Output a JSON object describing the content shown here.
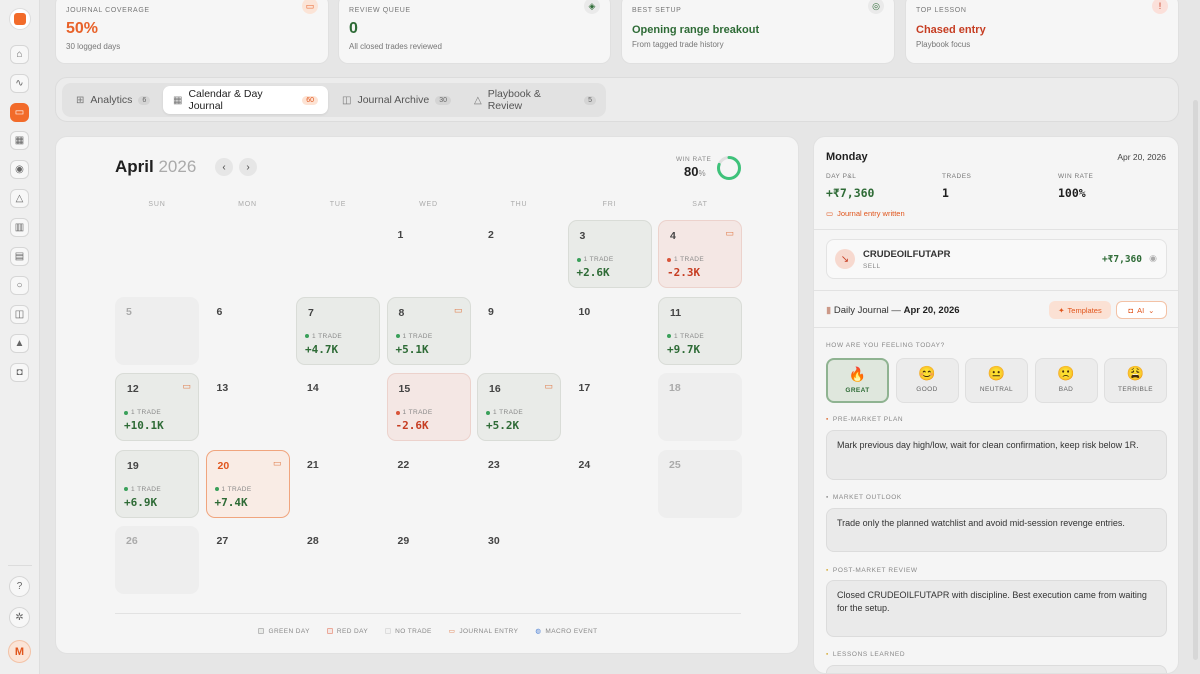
{
  "stats": [
    {
      "label": "JOURNAL COVERAGE",
      "value": "50%",
      "sub": "30 logged days",
      "color": "#e8622a",
      "icon": "book-icon"
    },
    {
      "label": "REVIEW QUEUE",
      "value": "0",
      "sub": "All closed trades reviewed",
      "color": "#2e6b36",
      "icon": "shield-check-icon"
    },
    {
      "label": "BEST SETUP",
      "value": "Opening range breakout",
      "sub": "From tagged trade history",
      "color": "#2e6b36",
      "icon": "target-icon"
    },
    {
      "label": "TOP LESSON",
      "value": "Chased entry",
      "sub": "Playbook focus",
      "color": "#c63d22",
      "icon": "alert-icon"
    }
  ],
  "tabs": [
    {
      "label": "Analytics",
      "count": "6"
    },
    {
      "label": "Calendar & Day Journal",
      "count": "60"
    },
    {
      "label": "Journal Archive",
      "count": "30"
    },
    {
      "label": "Playbook & Review",
      "count": "5"
    }
  ],
  "calendar": {
    "month": "April",
    "year": "2026",
    "win_rate_label": "WIN RATE",
    "win_rate": "80",
    "win_rate_unit": "%",
    "win_rate_fraction": 0.8,
    "weekdays": [
      "SUN",
      "MON",
      "TUE",
      "WED",
      "THU",
      "FRI",
      "SAT"
    ],
    "days": [
      {
        "d": "1",
        "type": "none"
      },
      {
        "d": "2",
        "type": "none"
      },
      {
        "d": "3",
        "type": "green",
        "trades": "1 TRADE",
        "pnl": "+2.6K"
      },
      {
        "d": "4",
        "type": "red",
        "trades": "1 TRADE",
        "pnl": "-2.3K",
        "journal": true
      },
      {
        "d": "5",
        "type": "grey"
      },
      {
        "d": "6",
        "type": "none"
      },
      {
        "d": "7",
        "type": "green",
        "trades": "1 TRADE",
        "pnl": "+4.7K"
      },
      {
        "d": "8",
        "type": "green",
        "trades": "1 TRADE",
        "pnl": "+5.1K",
        "journal": true
      },
      {
        "d": "9",
        "type": "none"
      },
      {
        "d": "10",
        "type": "none"
      },
      {
        "d": "11",
        "type": "green",
        "trades": "1 TRADE",
        "pnl": "+9.7K"
      },
      {
        "d": "12",
        "type": "green",
        "trades": "1 TRADE",
        "pnl": "+10.1K",
        "journal": true
      },
      {
        "d": "13",
        "type": "none"
      },
      {
        "d": "14",
        "type": "none"
      },
      {
        "d": "15",
        "type": "red",
        "trades": "1 TRADE",
        "pnl": "-2.6K"
      },
      {
        "d": "16",
        "type": "green",
        "trades": "1 TRADE",
        "pnl": "+5.2K",
        "journal": true
      },
      {
        "d": "17",
        "type": "none"
      },
      {
        "d": "18",
        "type": "grey"
      },
      {
        "d": "19",
        "type": "green",
        "trades": "1 TRADE",
        "pnl": "+6.9K"
      },
      {
        "d": "20",
        "type": "sel",
        "trades": "1 TRADE",
        "pnl": "+7.4K",
        "journal": true
      },
      {
        "d": "21",
        "type": "none"
      },
      {
        "d": "22",
        "type": "none"
      },
      {
        "d": "23",
        "type": "none"
      },
      {
        "d": "24",
        "type": "none"
      },
      {
        "d": "25",
        "type": "grey"
      },
      {
        "d": "26",
        "type": "grey"
      },
      {
        "d": "27",
        "type": "none"
      },
      {
        "d": "28",
        "type": "none"
      },
      {
        "d": "29",
        "type": "none"
      },
      {
        "d": "30",
        "type": "none"
      }
    ],
    "legend": [
      "GREEN DAY",
      "RED DAY",
      "NO TRADE",
      "JOURNAL ENTRY",
      "MACRO EVENT"
    ]
  },
  "panel": {
    "weekday": "Monday",
    "date": "Apr 20, 2026",
    "day_pnl_label": "DAY P&L",
    "day_pnl": "+₹7,360",
    "trades_label": "TRADES",
    "trades": "1",
    "win_rate_label": "WIN RATE",
    "win_rate": "100%",
    "journal_status": "Journal entry written",
    "trade": {
      "symbol": "CRUDEOILFUTAPR",
      "side": "SELL",
      "pnl": "+₹7,360"
    },
    "journal_title_prefix": "Daily Journal — ",
    "journal_title_date": "Apr 20, 2026",
    "templates_label": "Templates",
    "ai_label": "AI",
    "feeling_label": "HOW ARE YOU FEELING TODAY?",
    "moods": [
      {
        "emoji": "🔥",
        "label": "GREAT"
      },
      {
        "emoji": "😊",
        "label": "GOOD"
      },
      {
        "emoji": "😐",
        "label": "NEUTRAL"
      },
      {
        "emoji": "🙁",
        "label": "BAD"
      },
      {
        "emoji": "😩",
        "label": "TERRIBLE"
      }
    ],
    "pre_market_label": "PRE-MARKET PLAN",
    "pre_market": "Mark previous day high/low, wait for clean confirmation, keep risk below 1R.",
    "outlook_label": "MARKET OUTLOOK",
    "outlook": "Trade only the planned watchlist and avoid mid-session revenge entries.",
    "post_market_label": "POST-MARKET REVIEW",
    "post_market": "Closed CRUDEOILFUTAPR with discipline. Best execution came from waiting for the setup.",
    "lessons_label": "LESSONS LEARNED"
  },
  "user_initial": "M"
}
